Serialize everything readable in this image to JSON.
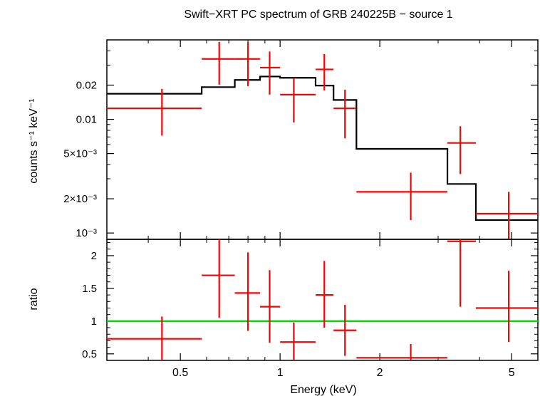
{
  "title": "Swift−XRT PC spectrum of GRB 240225B − source 1",
  "colors": {
    "data": "#ff0000",
    "model": "#000000",
    "ratio_line": "#00e000",
    "axes": "#000000"
  },
  "chart_data": [
    {
      "type": "scatter",
      "panel": "spectrum",
      "xlabel": "Energy (keV)",
      "ylabel": "counts s⁻¹ keV⁻¹",
      "xscale": "log",
      "yscale": "log",
      "xlim": [
        0.3,
        6.0
      ],
      "ylim": [
        0.00088,
        0.05
      ],
      "yticks": [
        {
          "value": 0.02,
          "label": "0.02"
        },
        {
          "value": 0.01,
          "label": "0.01"
        },
        {
          "value": 0.005,
          "label": "5×10⁻³"
        },
        {
          "value": 0.002,
          "label": "2×10⁻³"
        },
        {
          "value": 0.001,
          "label": "10⁻³"
        }
      ],
      "series": [
        {
          "kind": "data",
          "points": [
            {
              "xlo": 0.3,
              "xhi": 0.58,
              "x": 0.44,
              "y": 0.0125,
              "ylo": 0.0072,
              "yhi": 0.0185
            },
            {
              "xlo": 0.58,
              "xhi": 0.73,
              "x": 0.655,
              "y": 0.034,
              "ylo": 0.0202,
              "yhi": 0.048
            },
            {
              "xlo": 0.73,
              "xhi": 0.87,
              "x": 0.8,
              "y": 0.034,
              "ylo": 0.0196,
              "yhi": 0.048
            },
            {
              "xlo": 0.87,
              "xhi": 1.0,
              "x": 0.93,
              "y": 0.0285,
              "ylo": 0.0165,
              "yhi": 0.0395
            },
            {
              "xlo": 1.0,
              "xhi": 1.28,
              "x": 1.1,
              "y": 0.0165,
              "ylo": 0.0094,
              "yhi": 0.0232
            },
            {
              "xlo": 1.28,
              "xhi": 1.45,
              "x": 1.36,
              "y": 0.0275,
              "ylo": 0.018,
              "yhi": 0.0375
            },
            {
              "xlo": 1.45,
              "xhi": 1.7,
              "x": 1.57,
              "y": 0.0125,
              "ylo": 0.0068,
              "yhi": 0.0182
            },
            {
              "xlo": 1.7,
              "xhi": 3.2,
              "x": 2.48,
              "y": 0.0023,
              "ylo": 0.0013,
              "yhi": 0.0034
            },
            {
              "xlo": 3.2,
              "xhi": 3.9,
              "x": 3.5,
              "y": 0.0062,
              "ylo": 0.0033,
              "yhi": 0.0087
            },
            {
              "xlo": 3.9,
              "xhi": 6.0,
              "x": 4.9,
              "y": 0.00148,
              "ylo": 0.00088,
              "yhi": 0.0023
            }
          ]
        },
        {
          "kind": "model",
          "steps": [
            {
              "xlo": 0.3,
              "xhi": 0.58,
              "y": 0.0168
            },
            {
              "xlo": 0.58,
              "xhi": 0.73,
              "y": 0.0192
            },
            {
              "xlo": 0.73,
              "xhi": 0.87,
              "y": 0.0222
            },
            {
              "xlo": 0.87,
              "xhi": 1.0,
              "y": 0.0238
            },
            {
              "xlo": 1.0,
              "xhi": 1.28,
              "y": 0.0232
            },
            {
              "xlo": 1.28,
              "xhi": 1.45,
              "y": 0.0198
            },
            {
              "xlo": 1.45,
              "xhi": 1.7,
              "y": 0.0148
            },
            {
              "xlo": 1.7,
              "xhi": 3.2,
              "y": 0.0055
            },
            {
              "xlo": 3.2,
              "xhi": 3.9,
              "y": 0.0027
            },
            {
              "xlo": 3.9,
              "xhi": 6.0,
              "y": 0.0013
            }
          ]
        }
      ]
    },
    {
      "type": "scatter",
      "panel": "ratio",
      "xlabel": "Energy (keV)",
      "ylabel": "ratio",
      "xscale": "log",
      "yscale": "linear",
      "xlim": [
        0.3,
        6.0
      ],
      "ylim": [
        0.4,
        2.25
      ],
      "xticks": [
        {
          "value": 0.5,
          "label": "0.5"
        },
        {
          "value": 1,
          "label": "1"
        },
        {
          "value": 2,
          "label": "2"
        },
        {
          "value": 5,
          "label": "5"
        }
      ],
      "yticks": [
        {
          "value": 0.5,
          "label": "0.5"
        },
        {
          "value": 1,
          "label": "1"
        },
        {
          "value": 1.5,
          "label": "1.5"
        },
        {
          "value": 2,
          "label": "2"
        }
      ],
      "reference_line": 1,
      "points": [
        {
          "xlo": 0.3,
          "xhi": 0.58,
          "x": 0.44,
          "y": 0.73,
          "ylo": 0.4,
          "yhi": 1.07
        },
        {
          "xlo": 0.58,
          "xhi": 0.73,
          "x": 0.655,
          "y": 1.7,
          "ylo": 1.05,
          "yhi": 2.25
        },
        {
          "xlo": 0.73,
          "xhi": 0.87,
          "x": 0.8,
          "y": 1.43,
          "ylo": 0.85,
          "yhi": 2.05
        },
        {
          "xlo": 0.87,
          "xhi": 1.0,
          "x": 0.93,
          "y": 1.22,
          "ylo": 0.67,
          "yhi": 1.78
        },
        {
          "xlo": 1.0,
          "xhi": 1.28,
          "x": 1.1,
          "y": 0.68,
          "ylo": 0.4,
          "yhi": 0.98
        },
        {
          "xlo": 1.28,
          "xhi": 1.45,
          "x": 1.36,
          "y": 1.4,
          "ylo": 0.9,
          "yhi": 1.92
        },
        {
          "xlo": 1.45,
          "xhi": 1.7,
          "x": 1.57,
          "y": 0.86,
          "ylo": 0.47,
          "yhi": 1.25
        },
        {
          "xlo": 1.7,
          "xhi": 3.2,
          "x": 2.48,
          "y": 0.44,
          "ylo": 0.4,
          "yhi": 0.65
        },
        {
          "xlo": 3.2,
          "xhi": 3.9,
          "x": 3.5,
          "y": 2.22,
          "ylo": 1.22,
          "yhi": 2.25
        },
        {
          "xlo": 3.9,
          "xhi": 6.0,
          "x": 4.9,
          "y": 1.2,
          "ylo": 0.68,
          "yhi": 1.77
        }
      ]
    }
  ]
}
